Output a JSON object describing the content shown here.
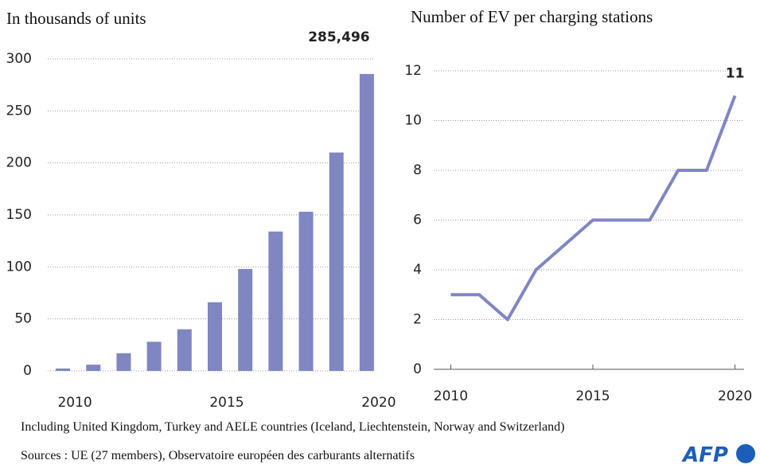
{
  "chart_data": [
    {
      "type": "bar",
      "title": "In thousands of units",
      "color": "#7f86c2",
      "x": [
        2010,
        2011,
        2012,
        2013,
        2014,
        2015,
        2016,
        2017,
        2018,
        2019,
        2020
      ],
      "values": [
        2.3,
        6,
        17,
        28,
        40,
        66,
        98,
        134,
        153,
        210,
        285.496
      ],
      "value_labels": [
        null,
        null,
        null,
        null,
        null,
        null,
        null,
        null,
        null,
        null,
        "285,496"
      ],
      "xlim": [
        2009.5,
        2020.5
      ],
      "xticks": [
        2010,
        2015,
        2020
      ],
      "ylim": [
        0,
        300
      ],
      "yticks": [
        0,
        50,
        100,
        150,
        200,
        250,
        300
      ],
      "grid": true
    },
    {
      "type": "line",
      "title": "Number of EV per charging stations",
      "color": "#7f86c2",
      "x": [
        2010,
        2011,
        2012,
        2013,
        2014,
        2015,
        2016,
        2017,
        2018,
        2019,
        2020
      ],
      "values": [
        3,
        3,
        2,
        4,
        5,
        6,
        6,
        6,
        8,
        8,
        11
      ],
      "value_labels": [
        null,
        null,
        null,
        null,
        null,
        null,
        null,
        null,
        null,
        null,
        "11"
      ],
      "xlim": [
        2009.4,
        2020.6
      ],
      "xticks": [
        2010,
        2015,
        2020
      ],
      "ylim": [
        0,
        12
      ],
      "yticks": [
        0,
        2,
        4,
        6,
        8,
        10,
        12
      ],
      "grid": true
    }
  ],
  "notes": {
    "footnote": "Including United Kingdom, Turkey and AELE countries (Iceland, Liechtenstein, Norway and Switzerland)",
    "sources": "Sources : UE (27 members), Observatoire européen des carburants alternatifs",
    "logo": "AFP"
  }
}
